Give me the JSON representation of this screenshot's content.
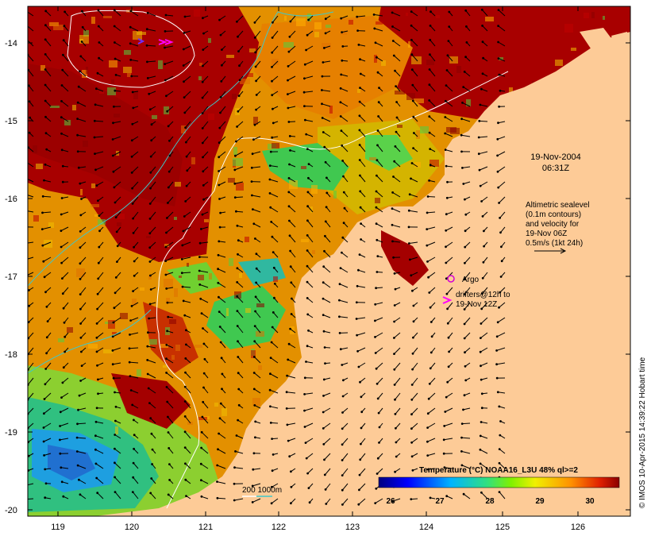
{
  "map": {
    "lon_ticks": [
      "119",
      "120",
      "121",
      "122",
      "123",
      "124",
      "125",
      "126"
    ],
    "lat_ticks": [
      "-14",
      "-15",
      "-16",
      "-17",
      "-18",
      "-19",
      "-20"
    ],
    "date_line1": "19-Nov-2004",
    "date_line2": "06:31Z",
    "altimetry_lines": [
      "Altimetric sealevel",
      "(0.1m contours)",
      "and velocity for",
      "19-Nov 06Z",
      "0.5m/s (1kt 24h)"
    ],
    "argo_label": "Argo",
    "drifters_line1": "drifters@12h to",
    "drifters_line2": "19-Nov 12Z",
    "isobath_label": "200  1000m",
    "colorbar_title": "Temperature (°C) NOAA16_L3U 48% ql>=2",
    "colorbar_ticks": [
      "26",
      "27",
      "28",
      "29",
      "30"
    ],
    "credit": "© IMOS 10-Apr-2015 14:39:22 Hobart time"
  },
  "colors": {
    "land": "#fdcb97",
    "hot": "#a40000",
    "warm_orange": "#e07800",
    "yellow": "#f0b400",
    "green": "#3cd25a",
    "cyan": "#00b4d2",
    "isobath_200": "#ffffff",
    "isobath_1000": "#40c8c8",
    "argo": "#d400d4",
    "drifter": "#ff00ff"
  }
}
